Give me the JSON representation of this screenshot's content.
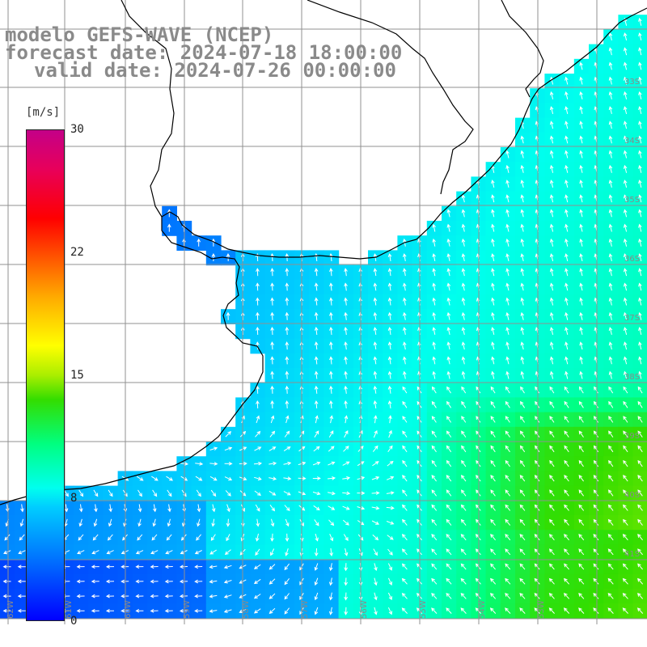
{
  "title": {
    "line1": "modelo GEFS-WAVE (NCEP)",
    "line2": "forecast date: 2024-07-18 18:00:00",
    "line3": "valid date: 2024-07-26 00:00:00"
  },
  "colorbar": {
    "unit": "[m/s]",
    "ticks": [
      "30",
      "22",
      "15",
      "8",
      "0"
    ],
    "tick_values": [
      30,
      22,
      15,
      8,
      0
    ],
    "colors": [
      "#0000ff",
      "#0077ff",
      "#00ccff",
      "#00ffee",
      "#00ff80",
      "#33dd00",
      "#aaee00",
      "#ffff00",
      "#ffaa00",
      "#ff5500",
      "#ff0000",
      "#e8005a",
      "#c40088"
    ]
  },
  "lat_labels": [
    "33S",
    "34S",
    "35S",
    "36S",
    "37S",
    "38S",
    "39S",
    "40S",
    "41S"
  ],
  "lon_labels": [
    "62W",
    "61W",
    "60W",
    "59W",
    "58W",
    "57W",
    "56W",
    "55W",
    "54W",
    "53W"
  ],
  "colors": {
    "background": "#ffffff",
    "land": "#ffffff",
    "coastline": "#000000",
    "grid": "#909090",
    "arrow": "#ffffff",
    "title": "#8a8a8a"
  }
}
